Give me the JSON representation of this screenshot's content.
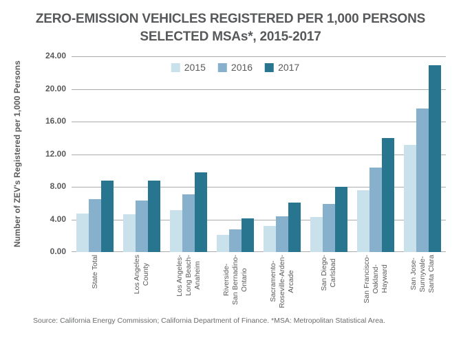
{
  "chart": {
    "title_line1": "ZERO-EMISSION VEHICLES REGISTERED PER 1,000 PERSONS",
    "title_line2": "SELECTED MSAs*, 2015-2017",
    "ylabel": "Number of ZEV's Registered per 1,000 Persons",
    "source": "Source: California Energy Commission; California Department of Finance. *MSA: Metropolitan Statistical Area."
  },
  "colors": {
    "title_text": "#57585a",
    "axis_text": "#58595b",
    "gridline": "#a9abad",
    "source_text": "#6b6c6e"
  },
  "chart_data": {
    "type": "bar",
    "title": "ZERO-EMISSION VEHICLES REGISTERED PER 1,000 PERSONS SELECTED MSAs*, 2015-2017",
    "xlabel": "",
    "ylabel": "Number of ZEV's Registered per 1,000 Persons",
    "ylim": [
      0,
      24
    ],
    "ytick_step": 4,
    "ytick_labels": [
      "0.00",
      "4.00",
      "8.00",
      "12.00",
      "16.00",
      "20.00",
      "24.00"
    ],
    "grid": true,
    "legend_position": "top-center",
    "categories": [
      "State Total",
      "Los Angeles County",
      "Los Angeles-Long Beach-Anaheim",
      "Riverside-San Bernadino-Ontario",
      "Sacramento-Roseville-Arden-Arcade",
      "San Diego-Carlsbad",
      "San Francisco-Oakland-Hayward",
      "San Jose-Sunnyvale-Santa Clara"
    ],
    "category_lines": [
      [
        "State Total"
      ],
      [
        "Los Angeles",
        "County"
      ],
      [
        "Los Angeles-",
        "Long Beach-",
        "Anaheim"
      ],
      [
        "Riverside-",
        "San Bernadino-",
        "Ontario"
      ],
      [
        "Sacramento-",
        "Roseville-Arden-",
        "Arcade"
      ],
      [
        "San Diego-",
        "Carlsbad"
      ],
      [
        "San Francisco-",
        "Oakland-",
        "Hayward"
      ],
      [
        "San Jose-",
        "Sunnyvale-",
        "Santa Clara"
      ]
    ],
    "series": [
      {
        "name": "2015",
        "color": "#c9e1ea",
        "values": [
          4.7,
          4.6,
          5.1,
          2.1,
          3.2,
          4.3,
          7.6,
          13.1
        ]
      },
      {
        "name": "2016",
        "color": "#86b0cb",
        "values": [
          6.5,
          6.3,
          7.1,
          2.8,
          4.4,
          5.9,
          10.4,
          17.6
        ]
      },
      {
        "name": "2017",
        "color": "#287590",
        "values": [
          8.8,
          8.8,
          9.8,
          4.1,
          6.1,
          8.0,
          14.0,
          22.9
        ]
      }
    ]
  }
}
